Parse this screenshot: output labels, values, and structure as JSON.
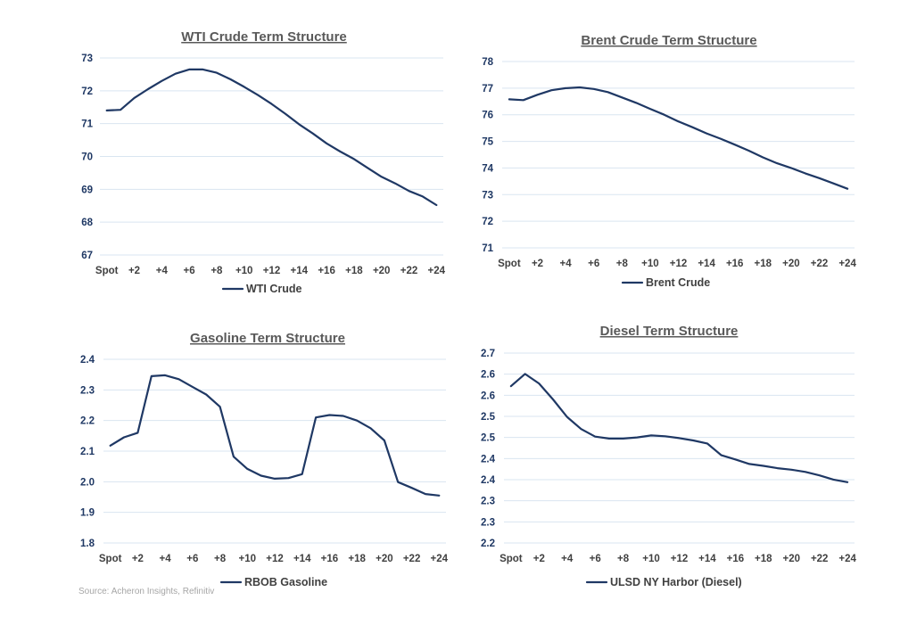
{
  "source_note": "Source: Acheron Insights, Refinitiv",
  "colors": {
    "series": "#1f3864",
    "grid": "#d9e5f0",
    "title": "#595959"
  },
  "chart_data": [
    {
      "id": "wti",
      "type": "line",
      "title": "WTI Crude Term Structure",
      "legend": "WTI Crude",
      "xlabel": "",
      "ylabel": "",
      "ylim": [
        67,
        73
      ],
      "yticks": [
        "67",
        "68",
        "69",
        "70",
        "71",
        "72",
        "73"
      ],
      "x": [
        "Spot",
        "+1",
        "+2",
        "+3",
        "+4",
        "+5",
        "+6",
        "+7",
        "+8",
        "+9",
        "+10",
        "+11",
        "+12",
        "+13",
        "+14",
        "+15",
        "+16",
        "+17",
        "+18",
        "+19",
        "+20",
        "+21",
        "+22",
        "+23",
        "+24"
      ],
      "xtick_labels": [
        "Spot",
        "+2",
        "+4",
        "+6",
        "+8",
        "+10",
        "+12",
        "+14",
        "+16",
        "+18",
        "+20",
        "+22",
        "+24"
      ],
      "values": [
        71.4,
        71.42,
        71.78,
        72.05,
        72.3,
        72.52,
        72.65,
        72.65,
        72.55,
        72.35,
        72.12,
        71.87,
        71.6,
        71.3,
        70.98,
        70.7,
        70.4,
        70.15,
        69.92,
        69.65,
        69.38,
        69.18,
        68.95,
        68.78,
        68.52
      ]
    },
    {
      "id": "brent",
      "type": "line",
      "title": "Brent Crude Term Structure",
      "legend": "Brent Crude",
      "xlabel": "",
      "ylabel": "",
      "ylim": [
        71,
        78
      ],
      "yticks": [
        "71",
        "72",
        "73",
        "74",
        "75",
        "76",
        "77",
        "78"
      ],
      "x": [
        "Spot",
        "+1",
        "+2",
        "+3",
        "+4",
        "+5",
        "+6",
        "+7",
        "+8",
        "+9",
        "+10",
        "+11",
        "+12",
        "+13",
        "+14",
        "+15",
        "+16",
        "+17",
        "+18",
        "+19",
        "+20",
        "+21",
        "+22",
        "+23",
        "+24"
      ],
      "xtick_labels": [
        "Spot",
        "+2",
        "+4",
        "+6",
        "+8",
        "+10",
        "+12",
        "+14",
        "+16",
        "+18",
        "+20",
        "+22",
        "+24"
      ],
      "values": [
        76.58,
        76.55,
        76.75,
        76.92,
        77.0,
        77.03,
        76.97,
        76.85,
        76.65,
        76.45,
        76.22,
        76.0,
        75.75,
        75.53,
        75.3,
        75.1,
        74.88,
        74.65,
        74.4,
        74.18,
        74.0,
        73.8,
        73.62,
        73.42,
        73.22
      ]
    },
    {
      "id": "gasoline",
      "type": "line",
      "title": "Gasoline Term Structure",
      "legend": "RBOB Gasoline",
      "xlabel": "",
      "ylabel": "",
      "ylim": [
        1.8,
        2.4
      ],
      "yticks": [
        "1.8",
        "1.9",
        "2.0",
        "2.1",
        "2.2",
        "2.3",
        "2.4"
      ],
      "x": [
        "Spot",
        "+1",
        "+2",
        "+3",
        "+4",
        "+5",
        "+6",
        "+7",
        "+8",
        "+9",
        "+10",
        "+11",
        "+12",
        "+13",
        "+14",
        "+15",
        "+16",
        "+17",
        "+18",
        "+19",
        "+20",
        "+21",
        "+22",
        "+23",
        "+24"
      ],
      "xtick_labels": [
        "Spot",
        "+2",
        "+4",
        "+6",
        "+8",
        "+10",
        "+12",
        "+14",
        "+16",
        "+18",
        "+20",
        "+22",
        "+24"
      ],
      "values": [
        2.118,
        2.145,
        2.16,
        2.345,
        2.348,
        2.335,
        2.31,
        2.285,
        2.245,
        2.082,
        2.042,
        2.02,
        2.01,
        2.012,
        2.025,
        2.21,
        2.218,
        2.215,
        2.2,
        2.175,
        2.135,
        1.999,
        1.98,
        1.96,
        1.955
      ]
    },
    {
      "id": "diesel",
      "type": "line",
      "title": "Diesel Term Structure",
      "legend": "ULSD NY Harbor (Diesel)",
      "xlabel": "",
      "ylabel": "",
      "ylim": [
        2.2,
        2.7
      ],
      "yticks": [
        "2.2",
        "2.3",
        "2.3",
        "2.4",
        "2.4",
        "2.5",
        "2.5",
        "2.6",
        "2.6",
        "2.7"
      ],
      "x": [
        "Spot",
        "+1",
        "+2",
        "+3",
        "+4",
        "+5",
        "+6",
        "+7",
        "+8",
        "+9",
        "+10",
        "+11",
        "+12",
        "+13",
        "+14",
        "+15",
        "+16",
        "+17",
        "+18",
        "+19",
        "+20",
        "+21",
        "+22",
        "+23",
        "+24"
      ],
      "xtick_labels": [
        "Spot",
        "+2",
        "+4",
        "+6",
        "+8",
        "+10",
        "+12",
        "+14",
        "+16",
        "+18",
        "+20",
        "+22",
        "+24"
      ],
      "values": [
        2.613,
        2.645,
        2.62,
        2.578,
        2.532,
        2.5,
        2.48,
        2.475,
        2.475,
        2.478,
        2.483,
        2.481,
        2.476,
        2.47,
        2.462,
        2.431,
        2.42,
        2.408,
        2.403,
        2.397,
        2.393,
        2.387,
        2.378,
        2.367,
        2.36
      ]
    }
  ]
}
